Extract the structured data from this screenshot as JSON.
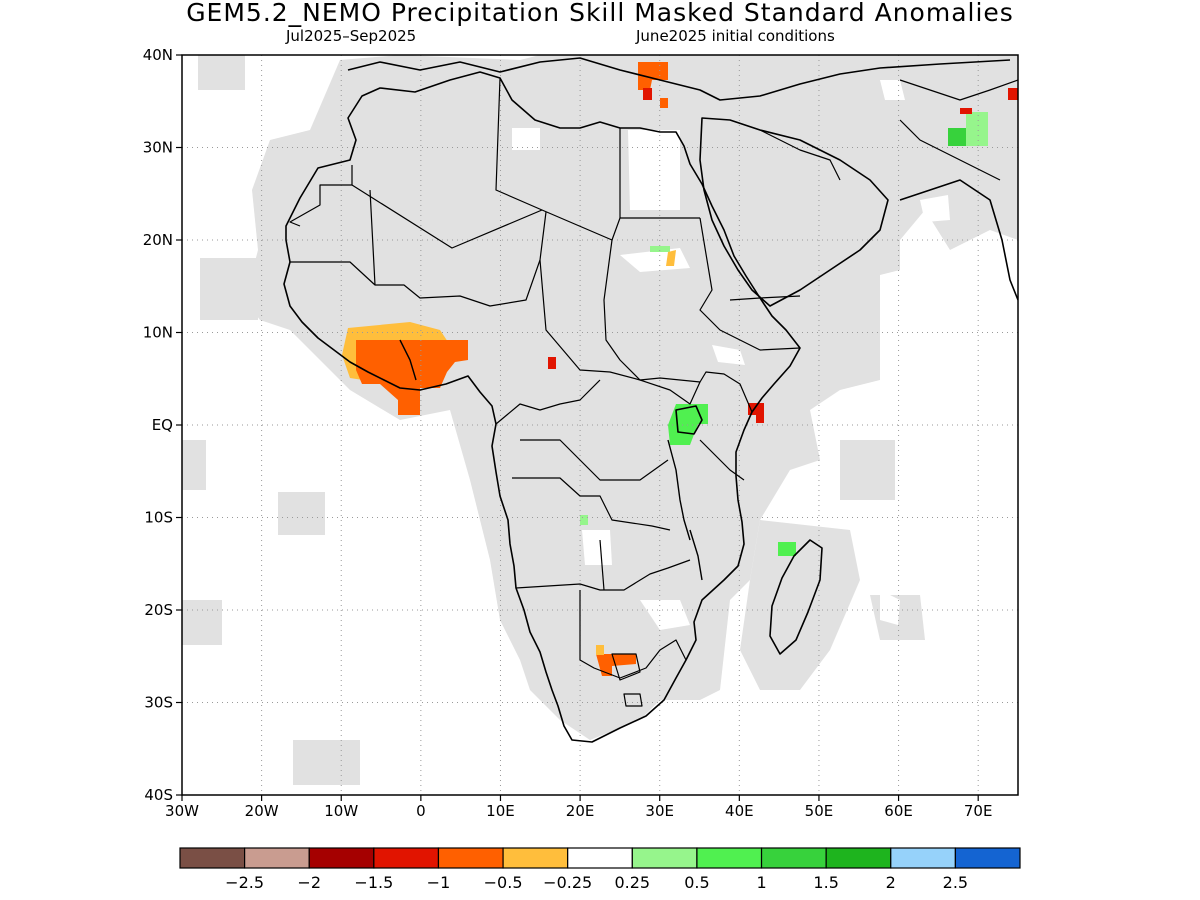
{
  "title": "GEM5.2_NEMO Precipitation Skill Masked Standard Anomalies",
  "subtitle_left": "Jul2025–Sep2025",
  "subtitle_right": "June2025 initial conditions",
  "map": {
    "lon_range": [
      -30,
      75
    ],
    "lat_range": [
      -40,
      40
    ],
    "lon_ticks": [
      {
        "lon": -30,
        "label": "30W"
      },
      {
        "lon": -20,
        "label": "20W"
      },
      {
        "lon": -10,
        "label": "10W"
      },
      {
        "lon": 0,
        "label": "0"
      },
      {
        "lon": 10,
        "label": "10E"
      },
      {
        "lon": 20,
        "label": "20E"
      },
      {
        "lon": 30,
        "label": "30E"
      },
      {
        "lon": 40,
        "label": "40E"
      },
      {
        "lon": 50,
        "label": "50E"
      },
      {
        "lon": 60,
        "label": "60E"
      },
      {
        "lon": 70,
        "label": "70E"
      }
    ],
    "lat_ticks": [
      {
        "lat": 40,
        "label": "40N"
      },
      {
        "lat": 30,
        "label": "30N"
      },
      {
        "lat": 20,
        "label": "20N"
      },
      {
        "lat": 10,
        "label": "10N"
      },
      {
        "lat": 0,
        "label": "EQ"
      },
      {
        "lat": -10,
        "label": "10S"
      },
      {
        "lat": -20,
        "label": "20S"
      },
      {
        "lat": -30,
        "label": "30S"
      },
      {
        "lat": -40,
        "label": "40S"
      }
    ],
    "colors": {
      "mask": "#e1e1e1",
      "coast": "#000000",
      "anom_m1_to_m0_5": "#ff6000",
      "anom_m0_5_to_m0_25": "#ffbe3c",
      "anom_m1_5_to_m1": "#e11400",
      "anom_0_5_to_1": "#50f050",
      "anom_1_to_1_5": "#37d23c",
      "anom_0_25_to_0_5": "#96f58c"
    }
  },
  "legend": {
    "colors": [
      "#7a4f45",
      "#c99c90",
      "#a50000",
      "#e11400",
      "#ff6000",
      "#ffbe3c",
      "#ffffff",
      "#96f58c",
      "#50f050",
      "#37d23c",
      "#1eb41e",
      "#96d2fa",
      "#1464d2"
    ],
    "labels": [
      "−2.5",
      "−2",
      "−1.5",
      "−1",
      "−0.5",
      "−0.25",
      "0.25",
      "0.5",
      "1",
      "1.5",
      "2",
      "2.5"
    ]
  }
}
